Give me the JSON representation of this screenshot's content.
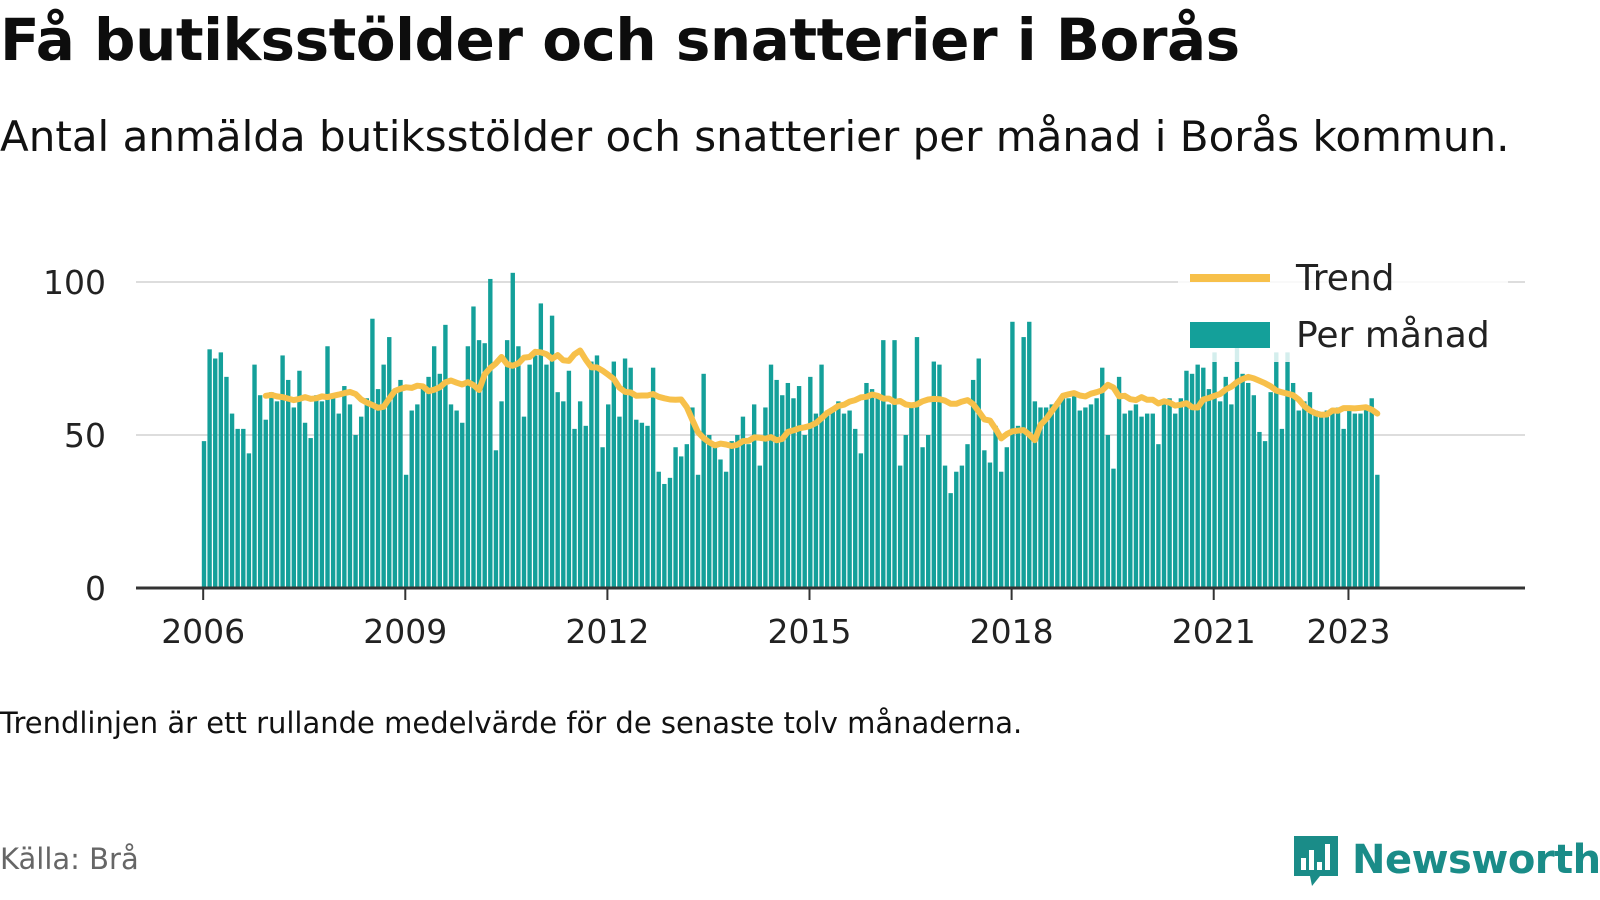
{
  "title": "Få butiksstölder och snatterier i Borås",
  "subtitle": "Antal anmälda butiksstölder och snatterier per månad i Borås kommun.",
  "note": "Trendlinjen är ett rullande medelvärde för de senaste tolv månaderna.",
  "source": "Källa: Brå",
  "brand": {
    "name": "Newsworthy",
    "icon": "bar-chart-speech-bubble-icon"
  },
  "colors": {
    "bars": "#14a09a",
    "trend": "#f7c04a",
    "grid": "#dddddd",
    "axis": "#333333",
    "brand": "#1a8c88"
  },
  "chart_data": {
    "type": "bar",
    "x_start": "2006-01",
    "x_end": "2023-02",
    "x_ticks": [
      "2006",
      "2009",
      "2012",
      "2015",
      "2018",
      "2021",
      "2023"
    ],
    "ylim": [
      0,
      100
    ],
    "y_ticks": [
      0,
      50,
      100
    ],
    "grid": true,
    "legend_position": "top-right",
    "series": [
      {
        "name": "Per månad",
        "type": "bar",
        "values": [
          48,
          78,
          75,
          77,
          69,
          57,
          52,
          52,
          44,
          73,
          63,
          55,
          64,
          61,
          76,
          68,
          59,
          71,
          54,
          49,
          63,
          61,
          79,
          62,
          57,
          66,
          60,
          50,
          56,
          62,
          88,
          65,
          73,
          82,
          64,
          68,
          37,
          58,
          60,
          66,
          69,
          79,
          70,
          86,
          60,
          58,
          54,
          79,
          92,
          81,
          80,
          101,
          45,
          61,
          81,
          103,
          79,
          56,
          73,
          76,
          93,
          73,
          89,
          64,
          61,
          71,
          52,
          61,
          53,
          74,
          76,
          46,
          60,
          74,
          56,
          75,
          72,
          55,
          54,
          53,
          72,
          38,
          34,
          36,
          46,
          43,
          47,
          59,
          37,
          70,
          50,
          47,
          42,
          38,
          48,
          50,
          56,
          47,
          60,
          40,
          59,
          73,
          68,
          63,
          67,
          62,
          66,
          50,
          69,
          57,
          73,
          58,
          58,
          61,
          57,
          58,
          52,
          44,
          67,
          65,
          63,
          81,
          60,
          81,
          40,
          50,
          60,
          82,
          46,
          50,
          74,
          73,
          40,
          31,
          38,
          40,
          47,
          68,
          75,
          45,
          41,
          53,
          38,
          46,
          87,
          53,
          82,
          87,
          61,
          59,
          59,
          60,
          61,
          62,
          62,
          63,
          58,
          59,
          60,
          62,
          72,
          50,
          39,
          69,
          57,
          58,
          60,
          56,
          57,
          57,
          47,
          60,
          62,
          57,
          62,
          71,
          70,
          73,
          72,
          65,
          77,
          61,
          69,
          60,
          79,
          70,
          67,
          63,
          51,
          48,
          64,
          77,
          52,
          77,
          67,
          58,
          61,
          64,
          58,
          57,
          58,
          58,
          59,
          52,
          58,
          57,
          57,
          59,
          62,
          37
        ]
      },
      {
        "name": "Trend",
        "type": "line",
        "values": [
          null,
          null,
          null,
          null,
          null,
          null,
          null,
          null,
          null,
          null,
          null,
          62.8,
          63.1,
          62.6,
          62.4,
          61.9,
          61.4,
          61.8,
          62.4,
          61.8,
          62.0,
          62.6,
          62.4,
          62.8,
          63.2,
          63.7,
          64.1,
          63.4,
          61.6,
          60.6,
          59.8,
          58.9,
          59.2,
          61.9,
          64.4,
          65.1,
          65.6,
          65.4,
          66.1,
          65.9,
          64.3,
          64.8,
          65.6,
          67.2,
          67.8,
          67.1,
          66.5,
          67.3,
          66.3,
          64.7,
          69.8,
          71.9,
          73.4,
          75.5,
          73.1,
          72.6,
          73.4,
          75.3,
          75.5,
          77.2,
          77.0,
          76.4,
          74.9,
          76.1,
          74.4,
          74.2,
          76.4,
          77.6,
          74.6,
          72.1,
          72.1,
          71.0,
          69.7,
          68.3,
          65.5,
          64.1,
          63.9,
          62.8,
          62.9,
          62.9,
          63.4,
          62.5,
          62.0,
          61.6,
          61.5,
          61.6,
          59.1,
          54.9,
          50.9,
          49.0,
          47.6,
          46.6,
          47.2,
          46.9,
          46.4,
          46.8,
          48.0,
          48.1,
          49.2,
          49.1,
          48.8,
          49.3,
          48.3,
          48.7,
          51.0,
          51.5,
          52.2,
          52.5,
          53.0,
          53.9,
          55.5,
          57.2,
          58.3,
          59.5,
          59.9,
          60.9,
          61.4,
          62.3,
          62.5,
          63.2,
          62.8,
          61.9,
          61.9,
          60.8,
          61.1,
          60.0,
          59.7,
          60.0,
          61.0,
          61.6,
          61.8,
          61.7,
          61.2,
          60.2,
          60.2,
          60.9,
          61.4,
          60.1,
          57.7,
          55.1,
          54.7,
          52.0,
          48.9,
          50.3,
          51.2,
          51.4,
          51.6,
          50.1,
          48.3,
          53.3,
          55.2,
          57.7,
          60.2,
          62.8,
          63.3,
          63.7,
          62.9,
          62.6,
          63.5,
          64.0,
          64.6,
          66.4,
          65.5,
          62.6,
          62.8,
          61.7,
          61.4,
          62.4,
          61.5,
          61.5,
          60.3,
          61.0,
          60.6,
          59.6,
          59.9,
          60.4,
          59.1,
          59.0,
          61.6,
          62.1,
          62.8,
          63.4,
          64.9,
          65.8,
          67.3,
          68.3,
          69.0,
          68.5,
          67.7,
          66.9,
          65.9,
          64.5,
          64.0,
          63.5,
          63.0,
          61.6,
          59.4,
          58.0,
          57.1,
          56.6,
          56.7,
          58.0,
          57.9,
          58.8,
          58.8,
          58.7,
          58.9,
          59.1,
          58.3,
          57.0
        ]
      }
    ]
  }
}
